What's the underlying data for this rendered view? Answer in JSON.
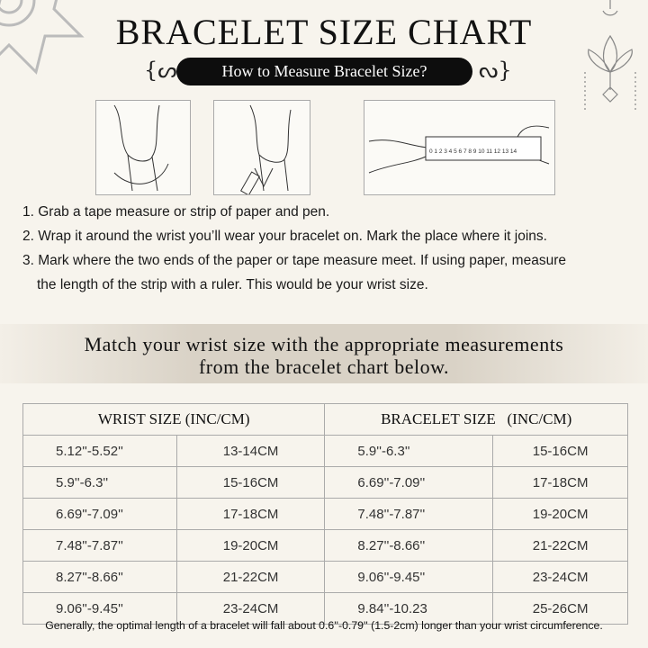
{
  "header": {
    "title": "BRACELET SIZE CHART",
    "subtitle": "How to Measure Bracelet Size?"
  },
  "illustrations": {
    "ruler_numbers": "0 1 2 3 4 5 6 7 8 9 10 11 12 13 14"
  },
  "steps": [
    "1. Grab a tape measure or strip of paper and pen.",
    "2. Wrap it around the wrist you’ll wear your bracelet on. Mark the place where it joins.",
    "3. Mark where the two ends of the paper or tape measure meet. If using paper, measure",
    "the length of the strip with a ruler. This would be your wrist size."
  ],
  "banner": [
    "Match your wrist size with the appropriate measurements",
    "from the bracelet chart below."
  ],
  "table": {
    "headers": [
      "WRIST SIZE (INC/CM)",
      "BRACELET SIZE   (INC/CM)"
    ],
    "rows": [
      [
        "5.12''-5.52''",
        "13-14CM",
        "5.9''-6.3''",
        "15-16CM"
      ],
      [
        "5.9''-6.3''",
        "15-16CM",
        "6.69''-7.09''",
        "17-18CM"
      ],
      [
        "6.69''-7.09''",
        "17-18CM",
        "7.48''-7.87''",
        "19-20CM"
      ],
      [
        "7.48''-7.87''",
        "19-20CM",
        "8.27''-8.66''",
        "21-22CM"
      ],
      [
        "8.27''-8.66''",
        "21-22CM",
        "9.06''-9.45''",
        "23-24CM"
      ],
      [
        "9.06''-9.45''",
        "23-24CM",
        "9.84''-10.23",
        "25-26CM"
      ]
    ]
  },
  "footer": "Generally, the optimal length of a bracelet will fall about 0.6''-0.79'' (1.5-2cm) longer than your wrist circumference."
}
